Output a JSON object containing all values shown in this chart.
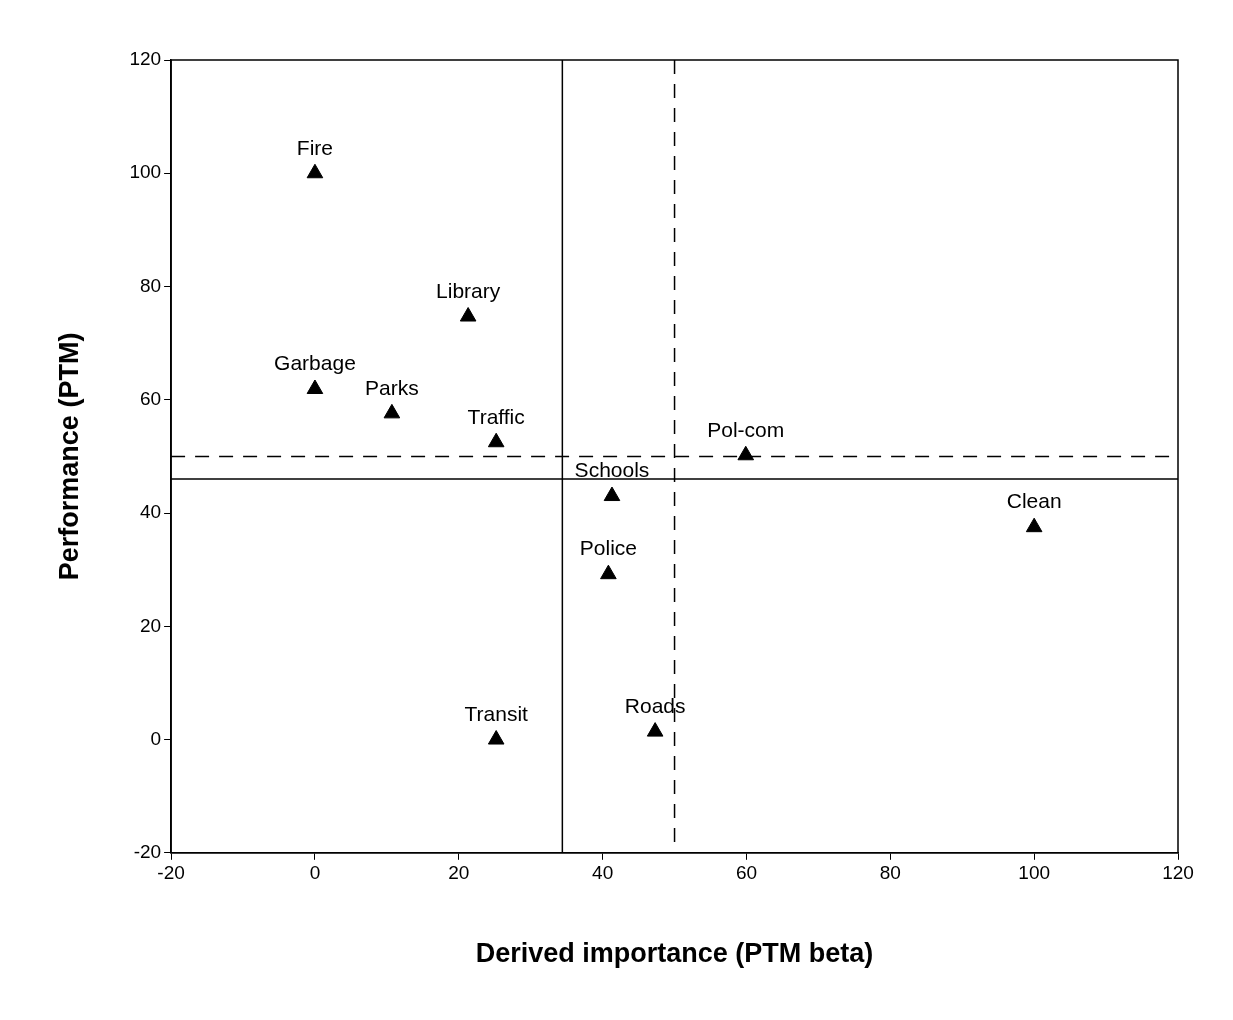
{
  "chart_data": {
    "type": "scatter",
    "xlabel": "Derived importance (PTM beta)",
    "ylabel": "Performance (PTM)",
    "x": [
      0,
      21.3,
      0,
      10.7,
      25.2,
      59.9,
      41.3,
      40.8,
      100,
      25.2,
      47.3
    ],
    "values": [
      100,
      74.7,
      61.9,
      57.6,
      52.5,
      50.2,
      43,
      29.2,
      37.5,
      0,
      1.4
    ],
    "color": "#000000",
    "marker": "triangle",
    "legend": false,
    "grid": false,
    "xlim": [
      -20,
      120
    ],
    "xticks": [
      -20,
      0,
      20,
      40,
      60,
      80,
      100,
      120
    ],
    "ylim": [
      -20,
      120
    ],
    "yticks": [
      -20,
      0,
      20,
      40,
      60,
      80,
      100,
      120
    ],
    "ref_lines": [
      {
        "axis": "x",
        "value": 34.4,
        "color": "#000000",
        "line_style": "solid"
      },
      {
        "axis": "y",
        "value": 46,
        "color": "#000000",
        "line_style": "solid"
      },
      {
        "axis": "x",
        "value": 50,
        "color": "#000000",
        "line_style": "dashed"
      },
      {
        "axis": "y",
        "value": 50,
        "color": "#000000",
        "line_style": "dashed"
      }
    ],
    "annotations": [
      {
        "text": "Fire",
        "x": 0,
        "y": 100
      },
      {
        "text": "Library",
        "x": 21.3,
        "y": 74.7
      },
      {
        "text": "Garbage",
        "x": 0,
        "y": 61.9
      },
      {
        "text": "Parks",
        "x": 10.7,
        "y": 57.6
      },
      {
        "text": "Traffic",
        "x": 25.2,
        "y": 52.5
      },
      {
        "text": "Pol-com",
        "x": 59.9,
        "y": 50.2
      },
      {
        "text": "Schools",
        "x": 41.3,
        "y": 43
      },
      {
        "text": "Police",
        "x": 40.8,
        "y": 29.2
      },
      {
        "text": "Clean",
        "x": 100,
        "y": 37.5
      },
      {
        "text": "Transit",
        "x": 25.2,
        "y": 0
      },
      {
        "text": "Roads",
        "x": 47.3,
        "y": 1.4
      }
    ]
  }
}
